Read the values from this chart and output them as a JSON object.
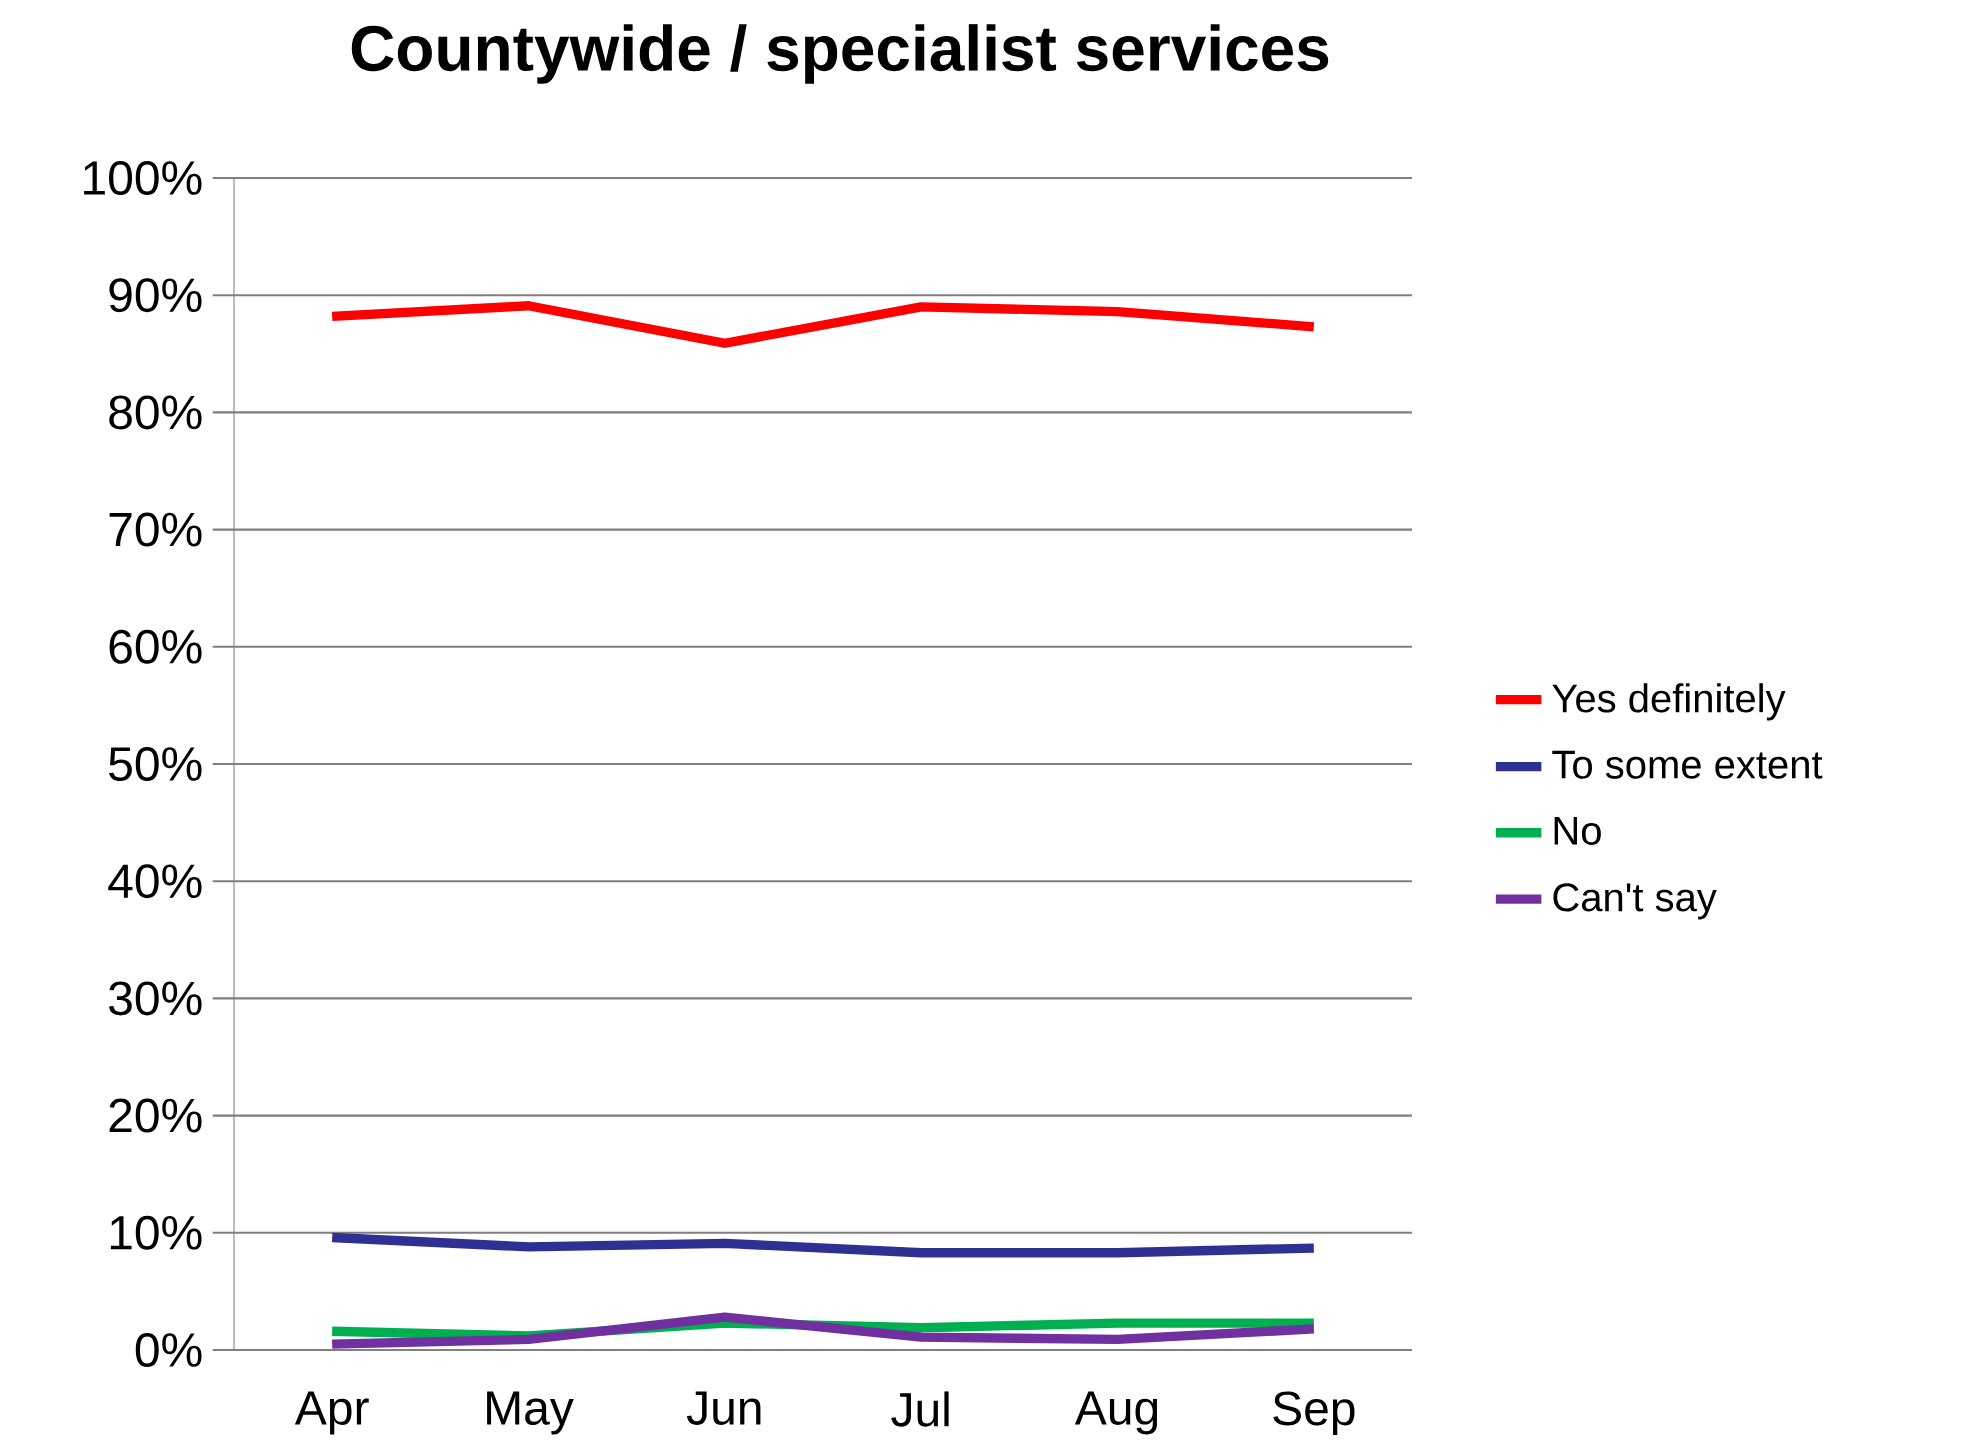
{
  "chart_data": {
    "type": "line",
    "title": "Countywide / specialist services",
    "categories": [
      "Apr",
      "May",
      "Jun",
      "Jul",
      "Aug",
      "Sep"
    ],
    "series": [
      {
        "name": "Yes definitely",
        "color": "#ff0000",
        "values": [
          88.2,
          89.1,
          85.9,
          89.0,
          88.6,
          87.3
        ]
      },
      {
        "name": "To some extent",
        "color": "#2e3192",
        "values": [
          9.6,
          8.8,
          9.1,
          8.3,
          8.3,
          8.7
        ]
      },
      {
        "name": "No",
        "color": "#00b050",
        "values": [
          1.6,
          1.2,
          2.3,
          1.9,
          2.3,
          2.3
        ]
      },
      {
        "name": "Can't say",
        "color": "#7030a0",
        "values": [
          0.5,
          0.9,
          2.8,
          1.1,
          0.9,
          1.8
        ]
      }
    ],
    "ylim": [
      0,
      100
    ],
    "yticks": [
      {
        "value": 0,
        "label": "0%"
      },
      {
        "value": 10,
        "label": "10%"
      },
      {
        "value": 20,
        "label": "20%"
      },
      {
        "value": 30,
        "label": "30%"
      },
      {
        "value": 40,
        "label": "40%"
      },
      {
        "value": 50,
        "label": "50%"
      },
      {
        "value": 60,
        "label": "60%"
      },
      {
        "value": 70,
        "label": "70%"
      },
      {
        "value": 80,
        "label": "80%"
      },
      {
        "value": 90,
        "label": "90%"
      },
      {
        "value": 100,
        "label": "100%"
      }
    ],
    "grid": "y",
    "legend": "right",
    "marker": "none",
    "line_style": "solid"
  }
}
